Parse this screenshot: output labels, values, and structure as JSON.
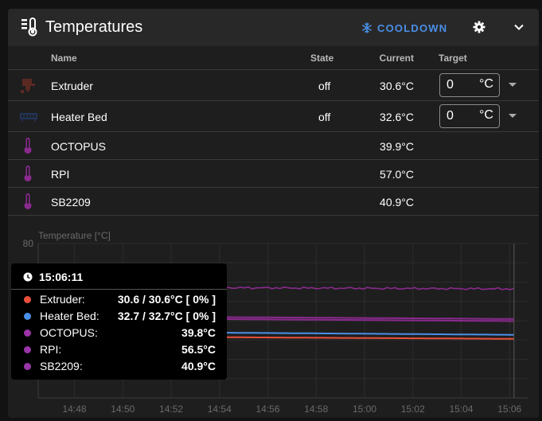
{
  "header": {
    "title": "Temperatures",
    "cooldown_label": "COOLDOWN",
    "icon": "thermometer-lines-icon"
  },
  "table": {
    "columns": {
      "name": "Name",
      "state": "State",
      "current": "Current",
      "target": "Target"
    },
    "rows": [
      {
        "name": "Extruder",
        "state": "off",
        "current": "30.6°C",
        "target": "0",
        "unit": "°C",
        "icon": "extruder-icon",
        "color": "#5a2a22"
      },
      {
        "name": "Heater Bed",
        "state": "off",
        "current": "32.6°C",
        "target": "0",
        "unit": "°C",
        "icon": "heater-bed-icon",
        "color": "#22355a"
      },
      {
        "name": "OCTOPUS",
        "state": "",
        "current": "39.9°C",
        "icon": "thermometer-icon",
        "color": "#8a2a8e"
      },
      {
        "name": "RPI",
        "state": "",
        "current": "57.0°C",
        "icon": "thermometer-icon",
        "color": "#8a2a8e"
      },
      {
        "name": "SB2209",
        "state": "",
        "current": "40.9°C",
        "icon": "thermometer-icon",
        "color": "#8a2a8e"
      }
    ]
  },
  "chart_data": {
    "type": "line",
    "ylabel": "Temperature [°C]",
    "yticks": [
      "80"
    ],
    "ylim": [
      0,
      80
    ],
    "x_ticks": [
      "14:48",
      "14:50",
      "14:52",
      "14:54",
      "14:56",
      "14:58",
      "15:00",
      "15:02",
      "15:04",
      "15:06"
    ],
    "grid": true,
    "series": [
      {
        "name": "Extruder",
        "color": "#e9503a",
        "x": [
          "14:46:30",
          "15:06:11"
        ],
        "y": [
          32.0,
          30.6
        ]
      },
      {
        "name": "Heater Bed",
        "color": "#4a8fe8",
        "x": [
          "14:46:30",
          "15:06:11"
        ],
        "y": [
          34.5,
          32.7
        ]
      },
      {
        "name": "OCTOPUS",
        "color": "#8a2a8e",
        "x": [
          "14:46:30",
          "15:06:11"
        ],
        "y": [
          41.5,
          39.8
        ]
      },
      {
        "name": "RPI",
        "color": "#8a2a8e",
        "x": [
          "14:46:30",
          "15:06:11"
        ],
        "y": [
          57.5,
          56.5
        ]
      },
      {
        "name": "SB2209",
        "color": "#8a2a8e",
        "x": [
          "14:46:30",
          "15:06:11"
        ],
        "y": [
          42.5,
          40.9
        ]
      }
    ]
  },
  "tooltip": {
    "time": "15:06:11",
    "rows": [
      {
        "label": "Extruder:",
        "value": "30.6 / 30.6°C [ 0% ]",
        "color": "#e9503a"
      },
      {
        "label": "Heater Bed:",
        "value": "32.7 / 32.7°C [ 0% ]",
        "color": "#4a8fe8"
      },
      {
        "label": "OCTOPUS:",
        "value": "39.8°C",
        "color": "#9a34a8"
      },
      {
        "label": "RPI:",
        "value": "56.5°C",
        "color": "#9a34a8"
      },
      {
        "label": "SB2209:",
        "value": "40.9°C",
        "color": "#9a34a8"
      }
    ]
  }
}
